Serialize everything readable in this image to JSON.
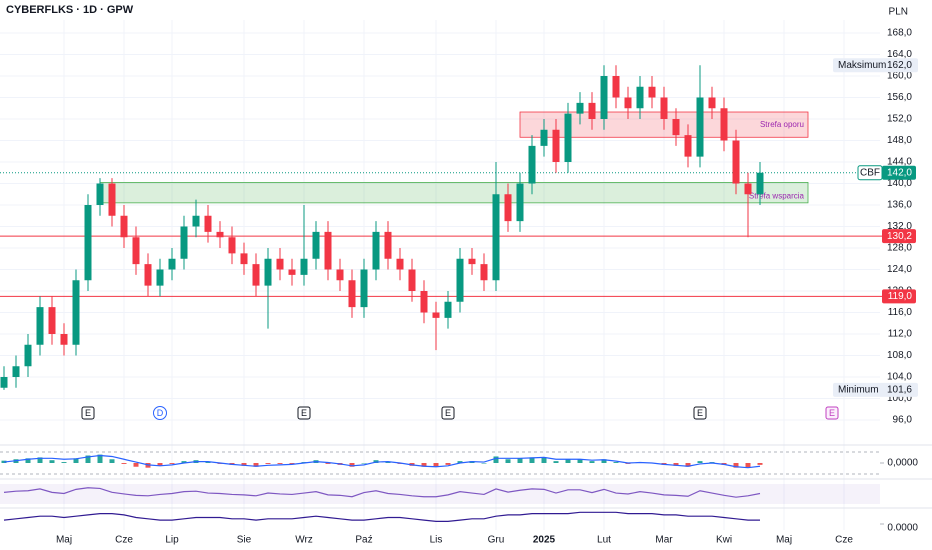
{
  "chart_data": {
    "type": "candlestick",
    "title": "CYBERFLKS · 1D · GPW",
    "currency": "PLN",
    "categories": [
      null,
      null,
      null,
      null,
      null,
      "Maj",
      null,
      null,
      null,
      null,
      "Cze",
      null,
      null,
      null,
      "Lip",
      null,
      null,
      null,
      null,
      null,
      "Sie",
      null,
      null,
      null,
      null,
      "Wrz",
      null,
      null,
      null,
      null,
      "Paź",
      null,
      null,
      null,
      null,
      null,
      "Lis",
      null,
      null,
      null,
      null,
      "Gru",
      null,
      null,
      null,
      "2025",
      null,
      null,
      null,
      null,
      "Lut",
      null,
      null,
      null,
      null,
      "Mar",
      null,
      null,
      null,
      null,
      "Kwi",
      null,
      null,
      null,
      null,
      "Maj",
      null,
      null,
      null,
      null,
      "Cze",
      null,
      null,
      null
    ],
    "open": [
      102,
      104,
      106,
      110,
      117,
      112,
      110,
      122,
      136,
      140,
      134,
      130,
      125,
      121,
      124,
      126,
      132,
      134,
      131,
      130,
      127,
      125,
      121,
      126,
      124,
      123,
      126,
      131,
      124,
      122,
      117,
      124,
      131,
      126,
      124,
      120,
      116,
      115,
      118,
      126,
      125,
      122,
      138,
      133,
      140,
      147,
      150,
      144,
      153,
      155,
      152,
      160,
      156,
      154,
      158,
      156,
      152,
      149,
      145,
      156,
      154,
      148,
      140,
      138,
      null,
      null,
      null,
      null,
      null,
      null,
      null,
      null,
      null,
      null
    ],
    "high": [
      106,
      108,
      112,
      119,
      119,
      114,
      124,
      138,
      141,
      141,
      136,
      132,
      127,
      126,
      128,
      134,
      137,
      136,
      133,
      132,
      129,
      127,
      128,
      128,
      126,
      136,
      133,
      133,
      126,
      124,
      126,
      133,
      133,
      128,
      126,
      122,
      118,
      120,
      128,
      128,
      127,
      144,
      140,
      142,
      149,
      152,
      152,
      155,
      157,
      157,
      162,
      162,
      158,
      160,
      160,
      158,
      154,
      151,
      162,
      158,
      156,
      150,
      142,
      144,
      null,
      null,
      null,
      null,
      null,
      null,
      null,
      null,
      null,
      null
    ],
    "low": [
      101.6,
      102,
      104,
      108,
      110,
      108,
      108,
      120,
      134,
      132,
      128,
      123,
      119,
      119,
      122,
      124,
      130,
      129,
      128,
      125,
      123,
      119,
      113,
      122,
      121,
      121,
      124,
      122,
      120,
      115,
      115,
      122,
      124,
      122,
      118,
      114,
      109,
      113,
      116,
      123,
      120,
      120,
      131,
      131,
      138,
      145,
      142,
      142,
      151,
      150,
      150,
      154,
      152,
      152,
      154,
      150,
      147,
      143,
      143,
      152,
      146,
      138,
      130,
      136,
      null,
      null,
      null,
      null,
      null,
      null,
      null,
      null,
      null,
      null
    ],
    "close": [
      104,
      106,
      110,
      117,
      112,
      110,
      122,
      136,
      140,
      134,
      130,
      125,
      121,
      124,
      126,
      132,
      134,
      131,
      130,
      127,
      125,
      121,
      126,
      124,
      123,
      126,
      131,
      124,
      122,
      117,
      124,
      131,
      126,
      124,
      120,
      116,
      115,
      118,
      126,
      125,
      122,
      138,
      133,
      140,
      147,
      150,
      144,
      153,
      155,
      152,
      160,
      156,
      154,
      158,
      156,
      152,
      149,
      145,
      156,
      154,
      148,
      140,
      138,
      142,
      null,
      null,
      null,
      null,
      null,
      null,
      null,
      null,
      null,
      null
    ],
    "up_color": "#089981",
    "down_color": "#f23645",
    "ylim": [
      96,
      168
    ],
    "yticks": [
      {
        "value": 96,
        "label": "96,0"
      },
      {
        "value": 100,
        "label": "100,0"
      },
      {
        "value": 104,
        "label": "104,0"
      },
      {
        "value": 108,
        "label": "108,0"
      },
      {
        "value": 112,
        "label": "112,0"
      },
      {
        "value": 116,
        "label": "116,0"
      },
      {
        "value": 120,
        "label": "120,0"
      },
      {
        "value": 124,
        "label": "124,0"
      },
      {
        "value": 128,
        "label": "128,0"
      },
      {
        "value": 132,
        "label": "132,0"
      },
      {
        "value": 136,
        "label": "136,0"
      },
      {
        "value": 140,
        "label": "140,0"
      },
      {
        "value": 144,
        "label": "144,0"
      },
      {
        "value": 148,
        "label": "148,0"
      },
      {
        "value": 152,
        "label": "152,0"
      },
      {
        "value": 156,
        "label": "156,0"
      },
      {
        "value": 160,
        "label": "160,0"
      },
      {
        "value": 164,
        "label": "164,0"
      },
      {
        "value": 168,
        "label": "168,0"
      }
    ],
    "grid": true,
    "levels": [
      {
        "value": 130.2,
        "label": "130,2",
        "color": "#f23645"
      },
      {
        "value": 119,
        "label": "119,0",
        "color": "#f23645"
      }
    ],
    "last": {
      "symbol": "CBF",
      "value": 142,
      "label": "142,0",
      "color": "#089981"
    },
    "extremes": [
      {
        "name": "Maksimum",
        "value": 162,
        "label": "162,0"
      },
      {
        "name": "Minimum",
        "value": 101.6,
        "label": "101,6"
      }
    ],
    "zones": [
      {
        "label": "Strefa wsparcia",
        "from": 136.4,
        "to": 140.2,
        "start": 8,
        "end": 67,
        "color": "#4caf50"
      },
      {
        "label": "Strefa oporu",
        "from": 148.6,
        "to": 153.3,
        "start": 43,
        "end": 67,
        "color": "#f23645"
      }
    ],
    "events": [
      {
        "at": 7,
        "label": "E"
      },
      {
        "at": 13,
        "label": "D"
      },
      {
        "at": 25,
        "label": "E"
      },
      {
        "at": 37,
        "label": "E"
      },
      {
        "at": 58,
        "label": "E"
      },
      {
        "at": 69,
        "label": "E"
      }
    ],
    "panes": [
      {
        "ylim": [
          -3,
          3
        ],
        "yticks": [
          {
            "value": 0,
            "label": "0,0000"
          }
        ],
        "series": [
          {
            "kind": "bar",
            "color": "#26a69a",
            "negative_color": "#ef5350",
            "values": [
              0.5,
              0.8,
              1,
              1.2,
              0.6,
              0.2,
              1,
              1.6,
              1.8,
              0.8,
              -0.2,
              -0.8,
              -1,
              -0.6,
              -0.2,
              0.4,
              0.6,
              0.2,
              -0.2,
              -0.4,
              -0.6,
              -0.8,
              -0.2,
              -0.2,
              -0.2,
              0.2,
              0.6,
              -0.2,
              -0.4,
              -0.8,
              0,
              0.6,
              0.2,
              -0.2,
              -0.6,
              -0.8,
              -0.8,
              -0.4,
              0.4,
              0.4,
              0,
              1.4,
              0.8,
              1,
              1.2,
              1.2,
              0.4,
              0.8,
              0.8,
              0.4,
              0.8,
              0.2,
              -0.2,
              0.2,
              0,
              -0.4,
              -0.6,
              -0.8,
              0.4,
              0.2,
              -0.4,
              -1,
              -1,
              -0.4,
              null,
              null,
              null,
              null,
              null,
              null,
              null,
              null,
              null,
              null
            ]
          },
          {
            "kind": "line",
            "color": "#2962ff",
            "values": [
              0.2,
              0.5,
              0.8,
              1,
              1,
              0.8,
              0.9,
              1.3,
              1.6,
              1.4,
              0.8,
              0.2,
              -0.4,
              -0.6,
              -0.4,
              0,
              0.3,
              0.3,
              0,
              -0.3,
              -0.5,
              -0.7,
              -0.5,
              -0.4,
              -0.3,
              0,
              0.3,
              0.1,
              -0.2,
              -0.6,
              -0.4,
              0.2,
              0.3,
              0,
              -0.4,
              -0.7,
              -0.8,
              -0.6,
              0,
              0.3,
              0.2,
              1,
              1,
              1,
              1.1,
              1.2,
              0.8,
              0.8,
              0.8,
              0.6,
              0.7,
              0.4,
              0,
              0.1,
              0,
              -0.3,
              -0.5,
              -0.7,
              -0.2,
              0,
              -0.3,
              -0.8,
              -1,
              -0.7,
              null,
              null,
              null,
              null,
              null,
              null,
              null,
              null,
              null,
              null
            ]
          }
        ]
      },
      {
        "ylim": [
          0,
          100
        ],
        "yticks": [],
        "series": [
          {
            "kind": "line",
            "color": "#7e57c2",
            "values": [
              55,
              60,
              62,
              70,
              55,
              50,
              68,
              75,
              72,
              55,
              48,
              42,
              40,
              46,
              50,
              58,
              60,
              52,
              50,
              46,
              44,
              40,
              52,
              48,
              46,
              52,
              58,
              44,
              42,
              36,
              54,
              62,
              50,
              46,
              40,
              36,
              36,
              44,
              58,
              52,
              46,
              70,
              56,
              64,
              70,
              68,
              52,
              66,
              66,
              54,
              68,
              52,
              48,
              58,
              52,
              44,
              42,
              38,
              62,
              52,
              42,
              34,
              40,
              50,
              null,
              null,
              null,
              null,
              null,
              null,
              null,
              null,
              null,
              null
            ]
          }
        ]
      },
      {
        "ylim": [
          0,
          10
        ],
        "yticks": [
          {
            "value": 0,
            "label": "0.0000"
          }
        ],
        "series": [
          {
            "kind": "line",
            "color": "#311b92",
            "values": [
              3,
              4,
              5,
              6,
              6,
              5,
              6,
              7,
              8,
              8,
              7,
              5,
              4,
              3,
              3,
              4,
              5,
              5,
              5,
              4,
              4,
              3,
              4,
              4,
              4,
              5,
              6,
              5,
              4,
              3,
              3,
              4,
              5,
              5,
              4,
              3,
              2,
              2,
              3,
              4,
              4,
              6,
              7,
              7,
              8,
              8,
              8,
              8,
              9,
              9,
              9,
              9,
              8,
              8,
              8,
              7,
              7,
              6,
              6,
              6,
              5,
              4,
              3,
              3,
              null,
              null,
              null,
              null,
              null,
              null,
              null,
              null,
              null,
              null
            ]
          }
        ]
      }
    ]
  }
}
